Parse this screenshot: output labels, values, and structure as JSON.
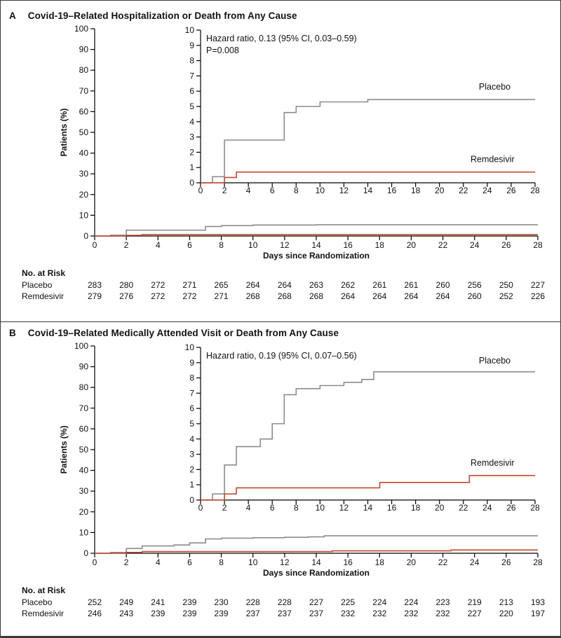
{
  "colors": {
    "placebo": "#8c8c8c",
    "remdesivir": "#c0492f",
    "axis": "#000000",
    "text": "#111111"
  },
  "chart_data": [
    {
      "type": "line",
      "letter": "A",
      "title": "Covid-19–Related Hospitalization or Death from Any Cause",
      "xlabel": "Days since Randomization",
      "ylabel": "Patients (%)",
      "legend_position": "inline-right",
      "grid": false,
      "main_axis": {
        "xlim": [
          0,
          28
        ],
        "xticks_step": 2,
        "ylim": [
          0,
          100
        ],
        "yticks_step": 10
      },
      "inset_axis": {
        "xlim": [
          0,
          28
        ],
        "xticks_step": 2,
        "ylim": [
          0,
          10
        ],
        "yticks_step": 1
      },
      "annotation": [
        "Hazard ratio, 0.13 (95% CI, 0.03–0.59)",
        "P=0.008"
      ],
      "series": [
        {
          "name": "Placebo",
          "color_key": "placebo",
          "steps": [
            [
              0,
              0
            ],
            [
              1,
              0.4
            ],
            [
              2,
              2.8
            ],
            [
              7,
              4.6
            ],
            [
              8,
              5.0
            ],
            [
              10,
              5.3
            ],
            [
              14,
              5.45
            ],
            [
              28,
              5.45
            ]
          ]
        },
        {
          "name": "Remdesivir",
          "color_key": "remdesivir",
          "steps": [
            [
              0,
              0
            ],
            [
              2,
              0.35
            ],
            [
              3,
              0.7
            ],
            [
              28,
              0.7
            ]
          ]
        }
      ],
      "series_labels": [
        {
          "text": "Placebo",
          "x": 23.3,
          "y": 6.1
        },
        {
          "text": "Remdesivir",
          "x": 22.6,
          "y": 1.35
        }
      ],
      "risk_table": {
        "heading": "No. at Risk",
        "days": [
          0,
          2,
          4,
          6,
          8,
          10,
          12,
          14,
          16,
          18,
          20,
          22,
          24,
          26,
          28
        ],
        "rows": [
          {
            "label": "Placebo",
            "values": [
              283,
              280,
              272,
              271,
              265,
              264,
              264,
              263,
              262,
              261,
              261,
              260,
              256,
              250,
              227
            ]
          },
          {
            "label": "Remdesivir",
            "values": [
              279,
              276,
              272,
              272,
              271,
              268,
              268,
              268,
              264,
              264,
              264,
              264,
              260,
              252,
              226
            ]
          }
        ]
      }
    },
    {
      "type": "line",
      "letter": "B",
      "title": "Covid-19–Related Medically Attended Visit or Death from Any Cause",
      "xlabel": "Days since Randomization",
      "ylabel": "Patients (%)",
      "legend_position": "inline-right",
      "grid": false,
      "main_axis": {
        "xlim": [
          0,
          28
        ],
        "xticks_step": 2,
        "ylim": [
          0,
          100
        ],
        "yticks_step": 10
      },
      "inset_axis": {
        "xlim": [
          0,
          28
        ],
        "xticks_step": 2,
        "ylim": [
          0,
          10
        ],
        "yticks_step": 1
      },
      "annotation": [
        "Hazard ratio, 0.19 (95% CI, 0.07–0.56)"
      ],
      "series": [
        {
          "name": "Placebo",
          "color_key": "placebo",
          "steps": [
            [
              0,
              0
            ],
            [
              1,
              0.4
            ],
            [
              2,
              2.3
            ],
            [
              3,
              3.5
            ],
            [
              5,
              4.0
            ],
            [
              6,
              5.0
            ],
            [
              7,
              6.9
            ],
            [
              8,
              7.3
            ],
            [
              10,
              7.5
            ],
            [
              12,
              7.7
            ],
            [
              13.5,
              7.9
            ],
            [
              14.5,
              8.4
            ],
            [
              28,
              8.4
            ]
          ]
        },
        {
          "name": "Remdesivir",
          "color_key": "remdesivir",
          "steps": [
            [
              0,
              0
            ],
            [
              2,
              0.4
            ],
            [
              3,
              0.8
            ],
            [
              15,
              1.15
            ],
            [
              22.5,
              1.6
            ],
            [
              28,
              1.6
            ]
          ]
        }
      ],
      "series_labels": [
        {
          "text": "Placebo",
          "x": 23.3,
          "y": 8.95
        },
        {
          "text": "Remdesivir",
          "x": 22.6,
          "y": 2.25
        }
      ],
      "risk_table": {
        "heading": "No. at Risk",
        "days": [
          0,
          2,
          4,
          6,
          8,
          10,
          12,
          14,
          16,
          18,
          20,
          22,
          24,
          26,
          28
        ],
        "rows": [
          {
            "label": "Placebo",
            "values": [
              252,
              249,
              241,
              239,
              230,
              228,
              228,
              227,
              225,
              224,
              224,
              223,
              219,
              213,
              193
            ]
          },
          {
            "label": "Remdesivir",
            "values": [
              246,
              243,
              239,
              239,
              239,
              237,
              237,
              237,
              232,
              232,
              232,
              232,
              227,
              220,
              197
            ]
          }
        ]
      }
    }
  ]
}
